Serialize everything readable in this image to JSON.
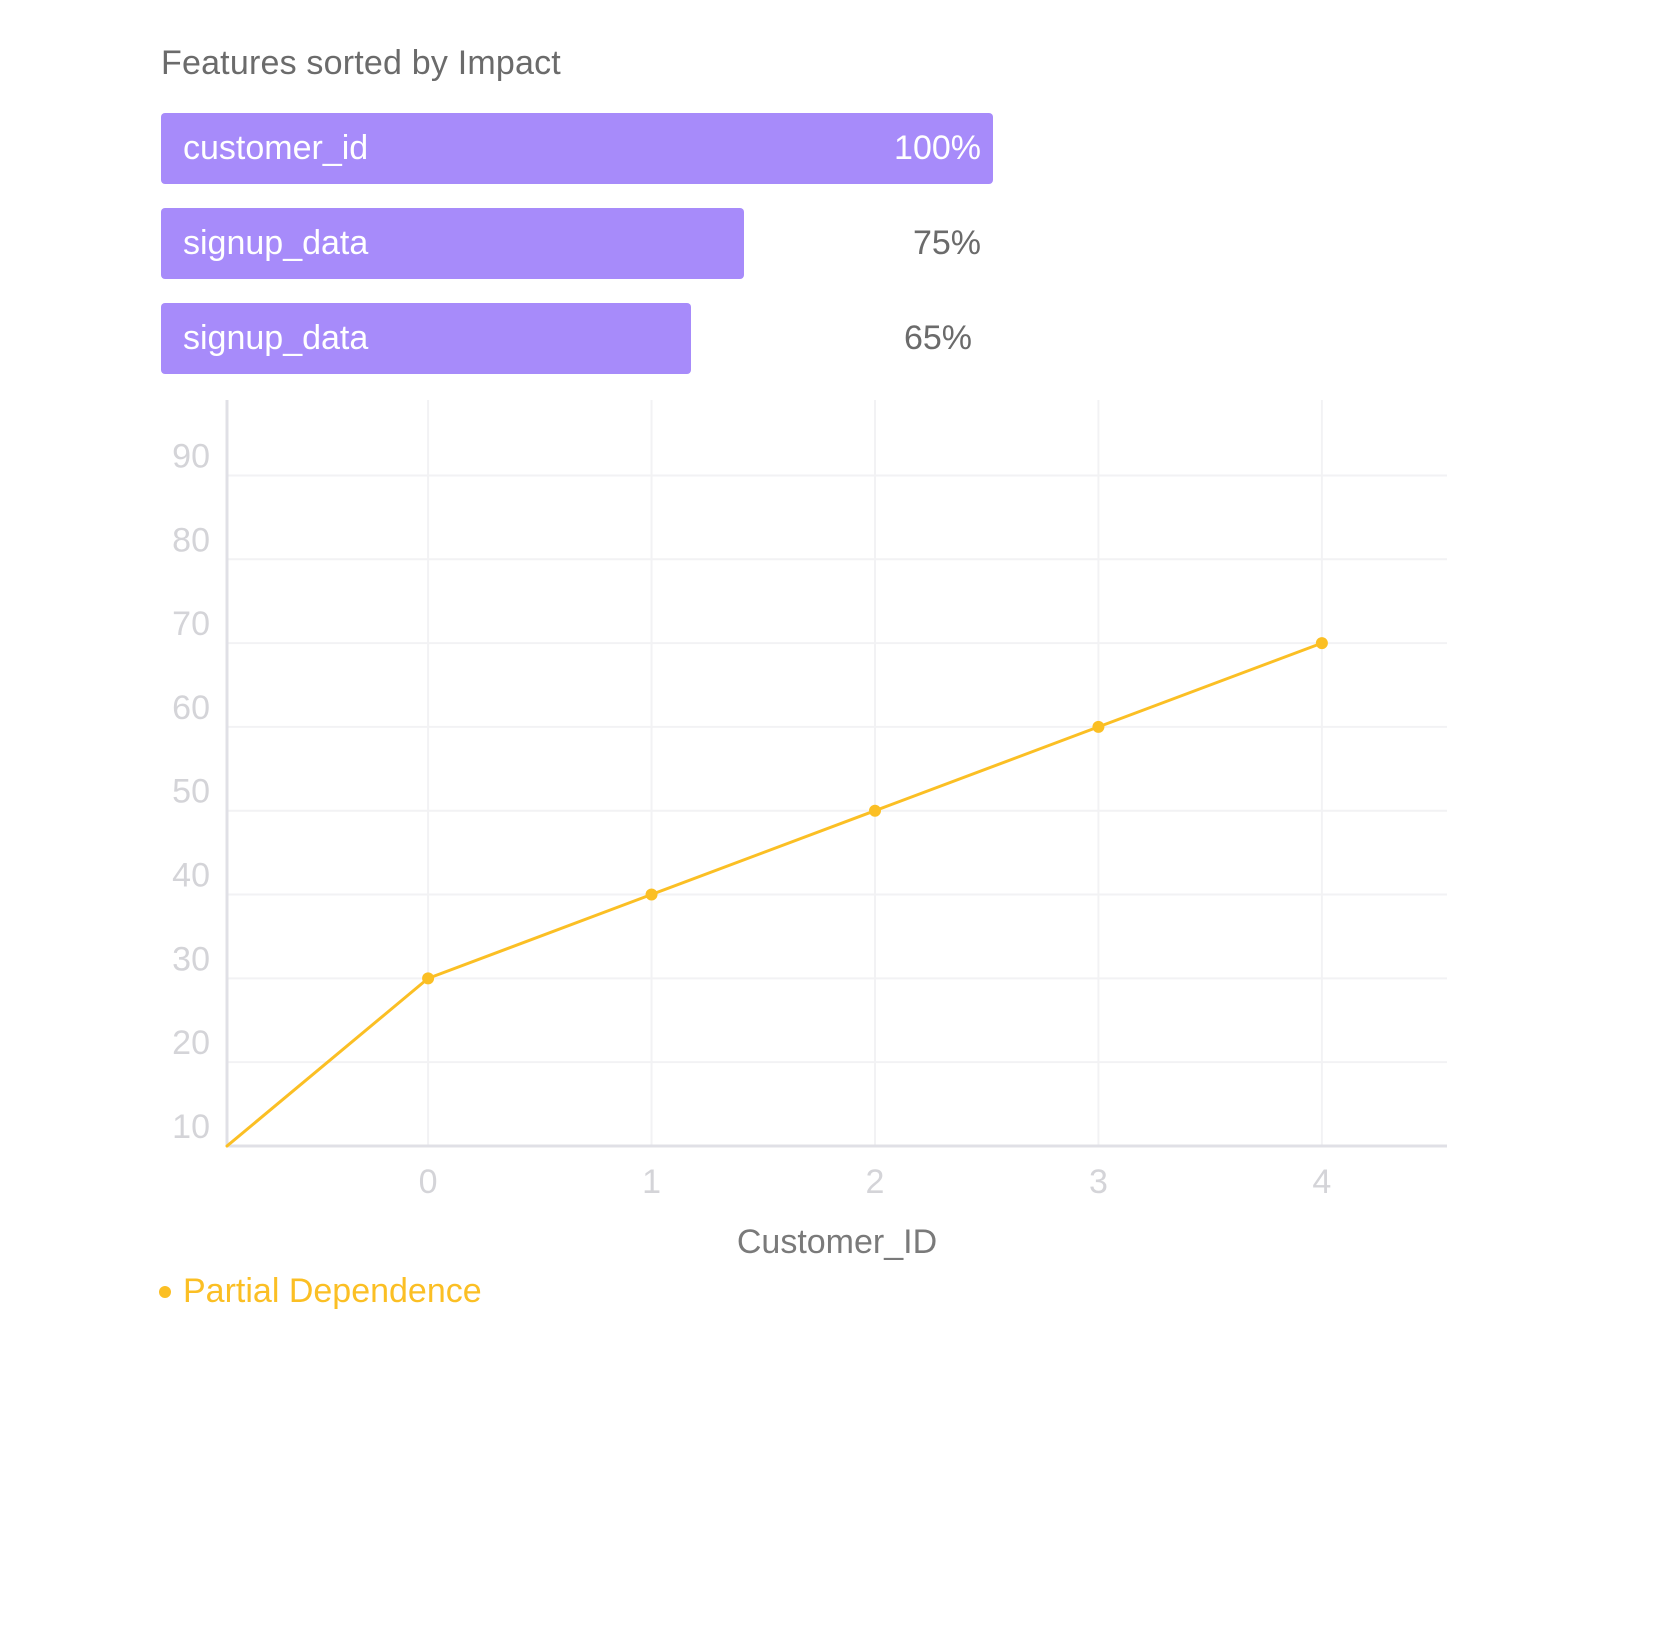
{
  "panel": {
    "title": "Features sorted by Impact"
  },
  "features": [
    {
      "name": "customer_id",
      "value_label": "100%",
      "value": 100
    },
    {
      "name": "signup_data",
      "value_label": "75%",
      "value": 75
    },
    {
      "name": "signup_data",
      "value_label": "65%",
      "value": 65
    }
  ],
  "colors": {
    "bar": "#a78bfa",
    "line": "#fbbf24",
    "axis": "#e0e0e6",
    "grid": "#f2f2f4",
    "tick_text": "#d4d4d8",
    "label_text": "#7a7a7a"
  },
  "chart_data": {
    "type": "line",
    "xlabel": "Customer_ID",
    "ylabel": "",
    "x_ticks": [
      "0",
      "1",
      "2",
      "3",
      "4"
    ],
    "y_ticks": [
      "10",
      "20",
      "30",
      "40",
      "50",
      "60",
      "70",
      "80",
      "90"
    ],
    "xlim": [
      -0.9,
      4.56
    ],
    "ylim": [
      10,
      99
    ],
    "grid": true,
    "legend_position": "bottom-left",
    "series": [
      {
        "name": "Partial Dependence",
        "x": [
          -0.9,
          0,
          1,
          2,
          3,
          4
        ],
        "y": [
          10,
          30,
          40,
          50,
          60,
          70
        ],
        "markers": [
          false,
          true,
          true,
          true,
          true,
          true
        ]
      }
    ]
  }
}
